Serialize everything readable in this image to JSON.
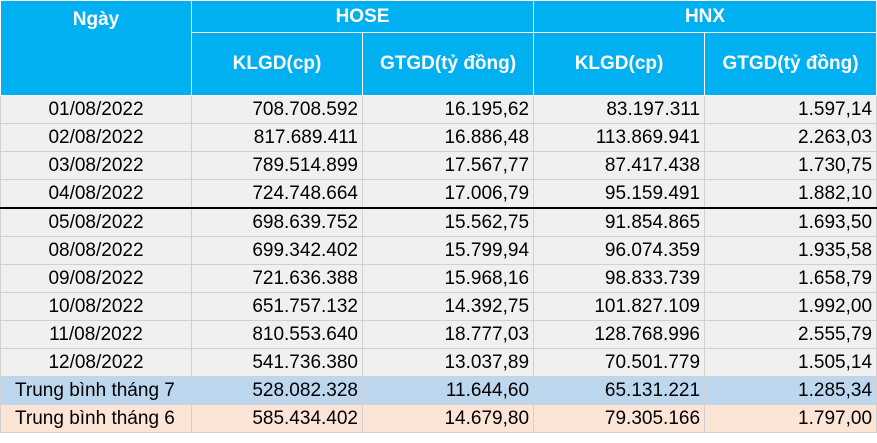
{
  "headers": {
    "day": "Ngày",
    "hose": "HOSE",
    "hnx": "HNX",
    "klgd": "KLGD(cp)",
    "gtgd": "GTGD(tỷ đồng)"
  },
  "rows": [
    {
      "day": "01/08/2022",
      "hose_klgd": "708.708.592",
      "hose_gtgd": "16.195,62",
      "hnx_klgd": "83.197.311",
      "hnx_gtgd": "1.597,14"
    },
    {
      "day": "02/08/2022",
      "hose_klgd": "817.689.411",
      "hose_gtgd": "16.886,48",
      "hnx_klgd": "113.869.941",
      "hnx_gtgd": "2.263,03"
    },
    {
      "day": "03/08/2022",
      "hose_klgd": "789.514.899",
      "hose_gtgd": "17.567,77",
      "hnx_klgd": "87.417.438",
      "hnx_gtgd": "1.730,75"
    },
    {
      "day": "04/08/2022",
      "hose_klgd": "724.748.664",
      "hose_gtgd": "17.006,79",
      "hnx_klgd": "95.159.491",
      "hnx_gtgd": "1.882,10"
    },
    {
      "day": "05/08/2022",
      "hose_klgd": "698.639.752",
      "hose_gtgd": "15.562,75",
      "hnx_klgd": "91.854.865",
      "hnx_gtgd": "1.693,50"
    },
    {
      "day": "08/08/2022",
      "hose_klgd": "699.342.402",
      "hose_gtgd": "15.799,94",
      "hnx_klgd": "96.074.359",
      "hnx_gtgd": "1.935,58"
    },
    {
      "day": "09/08/2022",
      "hose_klgd": "721.636.388",
      "hose_gtgd": "15.968,16",
      "hnx_klgd": "98.833.739",
      "hnx_gtgd": "1.658,79"
    },
    {
      "day": "10/08/2022",
      "hose_klgd": "651.757.132",
      "hose_gtgd": "14.392,75",
      "hnx_klgd": "101.827.109",
      "hnx_gtgd": "1.992,00"
    },
    {
      "day": "11/08/2022",
      "hose_klgd": "810.553.640",
      "hose_gtgd": "18.777,03",
      "hnx_klgd": "128.768.996",
      "hnx_gtgd": "2.555,79"
    },
    {
      "day": "12/08/2022",
      "hose_klgd": "541.736.380",
      "hose_gtgd": "13.037,89",
      "hnx_klgd": "70.501.779",
      "hnx_gtgd": "1.505,14"
    }
  ],
  "averages": [
    {
      "label": "Trung bình tháng 7",
      "hose_klgd": "528.082.328",
      "hose_gtgd": "11.644,60",
      "hnx_klgd": "65.131.221",
      "hnx_gtgd": "1.285,34"
    },
    {
      "label": "Trung bình tháng 6",
      "hose_klgd": "585.434.402",
      "hose_gtgd": "14.679,80",
      "hnx_klgd": "79.305.166",
      "hnx_gtgd": "1.797,00"
    }
  ]
}
